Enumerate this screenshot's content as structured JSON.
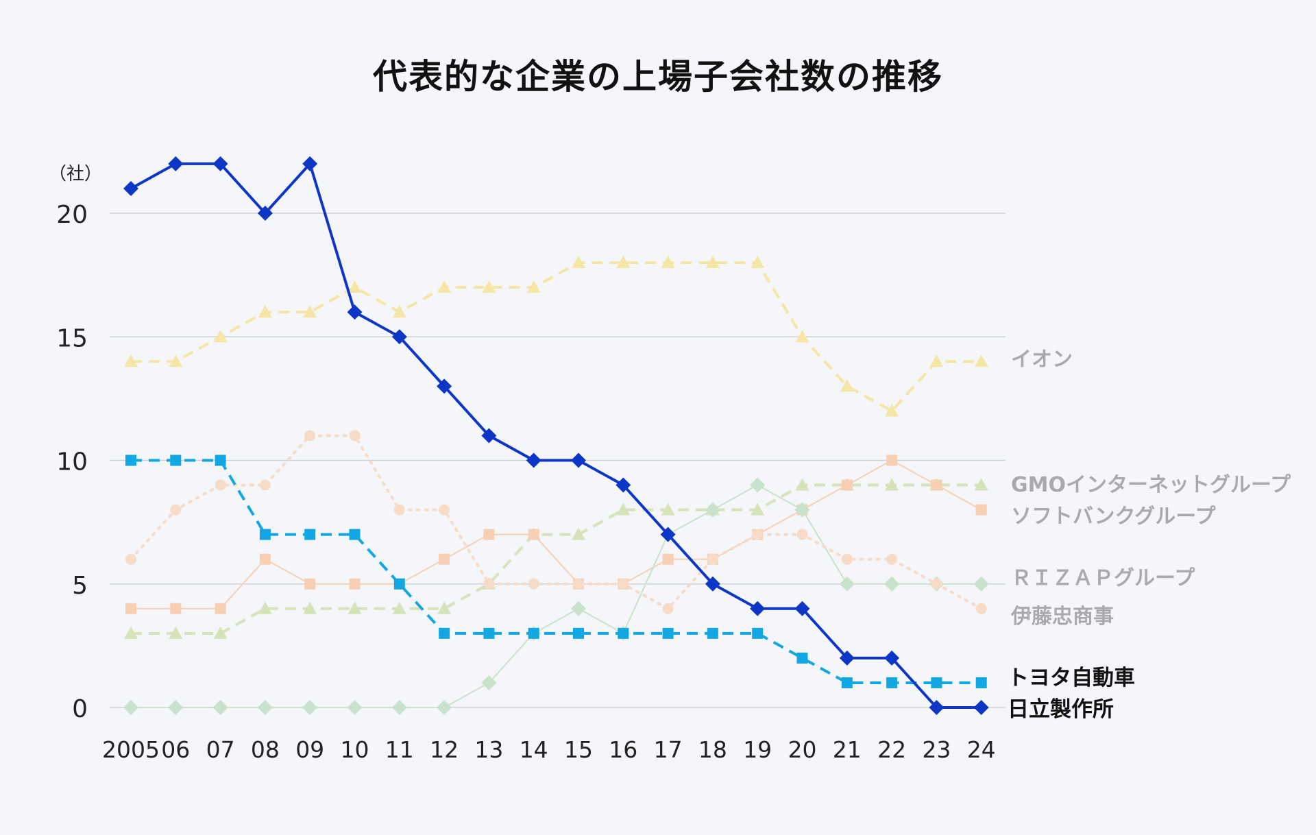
{
  "chart_data": {
    "type": "line",
    "title": "代表的な企業の上場子会社数の推移",
    "ylabel": "（社）",
    "xlabel": "",
    "ylim": [
      0,
      20
    ],
    "yticks": [
      "0",
      "5",
      "10",
      "15",
      "20"
    ],
    "categories": [
      "2005",
      "06",
      "07",
      "08",
      "09",
      "10",
      "11",
      "12",
      "13",
      "14",
      "15",
      "16",
      "17",
      "18",
      "19",
      "20",
      "21",
      "22",
      "23",
      "24"
    ],
    "grid": "horizontal",
    "legend": "right-end labels",
    "series": [
      {
        "name": "イオン",
        "color": "#f5e6a6",
        "label_color": "#a9aaad",
        "dash": "dashed",
        "marker": "triangle",
        "width": 4,
        "emphasis": "faded",
        "values": [
          14,
          14,
          15,
          16,
          16,
          17,
          16,
          17,
          17,
          17,
          18,
          18,
          18,
          18,
          18,
          15,
          13,
          12,
          14,
          14
        ]
      },
      {
        "name": "GMOインターネットグループ",
        "color": "#d5e3b8",
        "label_color": "#a9aaad",
        "dash": "dashed",
        "marker": "triangle",
        "width": 4,
        "emphasis": "faded",
        "values": [
          3,
          3,
          3,
          4,
          4,
          4,
          4,
          4,
          5,
          7,
          7,
          8,
          8,
          8,
          8,
          9,
          9,
          9,
          9,
          9
        ]
      },
      {
        "name": "ソフトバンクグループ",
        "color": "#f8cfb3",
        "label_color": "#a9aaad",
        "dash": "solid",
        "marker": "square",
        "width": 2,
        "emphasis": "faded",
        "values": [
          4,
          4,
          4,
          6,
          5,
          5,
          5,
          6,
          7,
          7,
          5,
          5,
          6,
          6,
          7,
          8,
          9,
          10,
          9,
          8
        ]
      },
      {
        "name": "ＲＩＺＡＰグループ",
        "color": "#c9e2cb",
        "label_color": "#a9aaad",
        "dash": "solid",
        "marker": "diamond",
        "width": 2,
        "emphasis": "faded",
        "values": [
          0,
          0,
          0,
          0,
          0,
          0,
          0,
          0,
          1,
          3,
          4,
          3,
          7,
          8,
          9,
          8,
          5,
          5,
          5,
          5
        ]
      },
      {
        "name": "伊藤忠商事",
        "color": "#f6dcc7",
        "label_color": "#a9aaad",
        "dash": "dotted",
        "marker": "circle",
        "width": 4,
        "emphasis": "faded",
        "values": [
          6,
          8,
          9,
          9,
          11,
          11,
          8,
          8,
          5,
          5,
          5,
          5,
          4,
          6,
          7,
          7,
          6,
          6,
          5,
          4
        ]
      },
      {
        "name": "トヨタ自動車",
        "color": "#12a7e3",
        "label_color": "#111111",
        "dash": "dashed",
        "marker": "square",
        "width": 4,
        "emphasis": "highlight",
        "values": [
          10,
          10,
          10,
          7,
          7,
          7,
          5,
          3,
          3,
          3,
          3,
          3,
          3,
          3,
          3,
          2,
          1,
          1,
          1,
          1
        ]
      },
      {
        "name": "日立製作所",
        "color": "#0d36c7",
        "label_color": "#111111",
        "dash": "solid",
        "marker": "diamond",
        "width": 4,
        "emphasis": "highlight",
        "values": [
          21,
          22,
          22,
          20,
          22,
          16,
          15,
          13,
          11,
          10,
          10,
          9,
          7,
          5,
          4,
          4,
          2,
          2,
          0,
          0
        ]
      }
    ]
  }
}
